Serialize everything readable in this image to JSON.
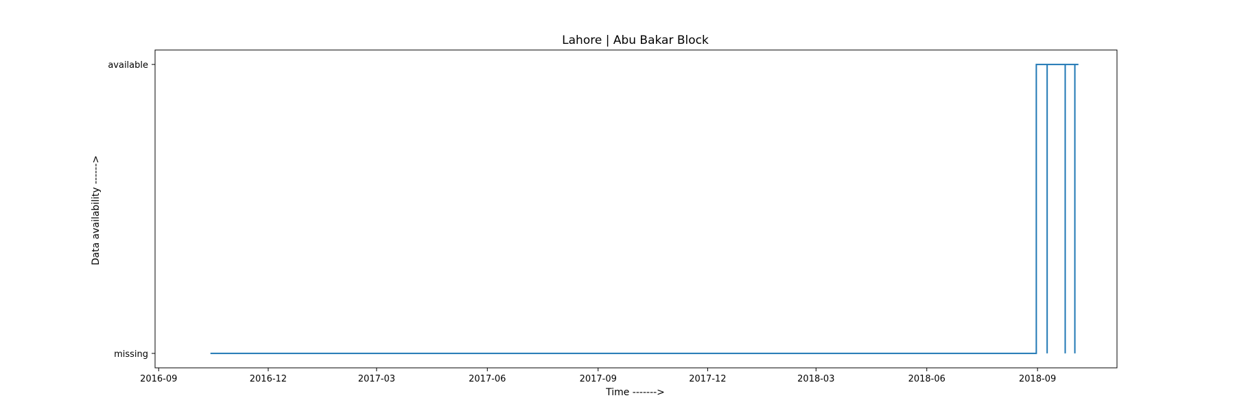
{
  "chart_data": {
    "type": "line",
    "title": "Lahore | Abu Bakar Block",
    "xlabel": "Time ------->",
    "ylabel": "Data availability ------>",
    "x_axis_type": "date",
    "xlim": [
      "2016-08-29",
      "2018-11-06"
    ],
    "ylim": [
      -0.05,
      1.05
    ],
    "x_ticks": [
      "2016-09-01",
      "2016-12-01",
      "2017-03-01",
      "2017-06-01",
      "2017-09-01",
      "2017-12-01",
      "2018-03-01",
      "2018-06-01",
      "2018-09-01"
    ],
    "x_tick_labels": [
      "2016-09",
      "2016-12",
      "2017-03",
      "2017-06",
      "2017-09",
      "2017-12",
      "2018-03",
      "2018-06",
      "2018-09"
    ],
    "y_ticks": [
      0,
      1
    ],
    "y_tick_labels": [
      "missing",
      "available"
    ],
    "grid": false,
    "color": "#1f77b4",
    "series": [
      {
        "steps": [
          {
            "x": "2016-10-14",
            "y": 0
          },
          {
            "x": "2018-08-31",
            "y": 0
          },
          {
            "x": "2018-08-31",
            "y": 1
          },
          {
            "x": "2018-09-09",
            "y": 1
          },
          {
            "x": "2018-09-09",
            "y": 0
          },
          {
            "x": "2018-09-09",
            "y": 1
          },
          {
            "x": "2018-09-24",
            "y": 1
          },
          {
            "x": "2018-09-24",
            "y": 0
          },
          {
            "x": "2018-09-24",
            "y": 1
          },
          {
            "x": "2018-10-02",
            "y": 1
          },
          {
            "x": "2018-10-02",
            "y": 0
          },
          {
            "x": "2018-10-02",
            "y": 1
          },
          {
            "x": "2018-10-05",
            "y": 1
          }
        ]
      }
    ]
  }
}
